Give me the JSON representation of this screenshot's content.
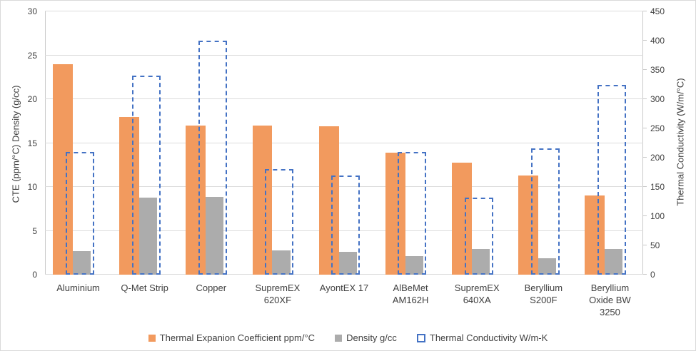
{
  "chart_data": {
    "type": "bar",
    "title": "",
    "categories": [
      "Aluminium",
      "Q-Met Strip",
      "Copper",
      "SupremEX 620XF",
      "AyontEX 17",
      "AlBeMet AM162H",
      "SupremEX 640XA",
      "Beryllium S200F",
      "Beryllium Oxide BW 3250"
    ],
    "category_lines": [
      [
        "Aluminium"
      ],
      [
        "Q-Met Strip"
      ],
      [
        "Copper"
      ],
      [
        "SupremEX",
        "620XF"
      ],
      [
        "AyontEX 17"
      ],
      [
        "AlBeMet",
        "AM162H"
      ],
      [
        "SupremEX",
        "640XA"
      ],
      [
        "Beryllium",
        "S200F"
      ],
      [
        "Beryllium",
        "Oxide  BW",
        "3250"
      ]
    ],
    "series": [
      {
        "name": "Thermal Expanion Coefficient ppm/°C",
        "axis": "left",
        "style": "solid",
        "color": "#f29a5e",
        "values": [
          24,
          18,
          17,
          17,
          16.9,
          13.9,
          12.8,
          11.3,
          9
        ]
      },
      {
        "name": "Density  g/cc",
        "axis": "left",
        "style": "solid",
        "color": "#acacac",
        "values": [
          2.7,
          8.8,
          8.9,
          2.8,
          2.6,
          2.1,
          2.9,
          1.85,
          2.9
        ]
      },
      {
        "name": "Thermal Conductivity  W/m-K",
        "axis": "right",
        "style": "dashed-outline",
        "color": "#4472c4",
        "values": [
          210,
          340,
          400,
          180,
          170,
          210,
          132,
          216,
          325
        ]
      }
    ],
    "left_axis": {
      "title": "CTE (ppm/°C)  Density (g/cc)",
      "min": 0,
      "max": 30,
      "ticks": [
        0,
        5,
        10,
        15,
        20,
        25,
        30
      ]
    },
    "right_axis": {
      "title": "Thermal Conductivity (W/m/°C)",
      "min": 0,
      "max": 450,
      "ticks": [
        0,
        50,
        100,
        150,
        200,
        250,
        300,
        350,
        400,
        450
      ]
    },
    "grid": true,
    "gridline_color": "#dcdcdc",
    "legend_position": "bottom"
  }
}
